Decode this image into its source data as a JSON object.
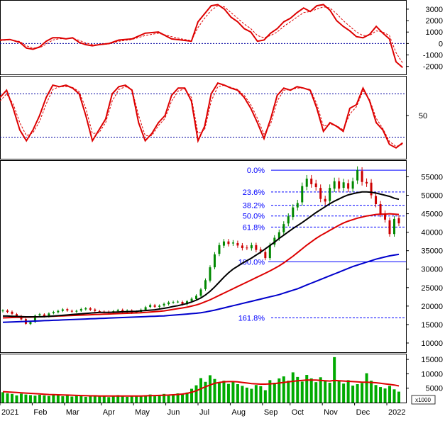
{
  "colors": {
    "background": "#ffffff",
    "frame": "#000000",
    "grid_dotted": "#0000a0",
    "fib_line": "#0000ff",
    "fib_label": "#0000ff",
    "macd": "#dd0000",
    "macd_signal": "#dd0000",
    "stoch": "#dd0000",
    "ma_black": "#000000",
    "ma_red": "#dd0000",
    "ma_blue": "#0000cc",
    "candle_up": "#008800",
    "candle_down": "#cc0000",
    "volume_bar": "#00aa00",
    "volume_ma": "#dd0000"
  },
  "chart_data": [
    {
      "type": "line",
      "panel": "macd",
      "y_ticks": [
        3000,
        2000,
        1000,
        0,
        -1000,
        -2000
      ],
      "y_tick_labels": [
        "3000",
        "2000",
        "1000",
        "0",
        "-1000",
        "-2000"
      ],
      "ylim": [
        -2700,
        3800
      ],
      "reference_lines": [
        0
      ],
      "series": [
        {
          "style": "solid",
          "x": [
            0,
            3,
            6,
            8,
            10,
            12,
            14,
            16,
            18,
            20,
            22,
            24,
            26,
            28,
            30,
            33,
            36,
            40,
            44,
            48,
            52,
            55,
            58,
            60,
            62,
            64,
            66,
            68,
            70,
            72,
            74,
            76,
            78,
            80,
            82,
            84,
            86,
            88,
            90,
            92,
            94,
            96,
            98,
            100,
            102,
            104,
            106,
            108,
            110,
            112,
            114,
            116,
            118,
            120,
            122
          ],
          "values": [
            300,
            350,
            100,
            -400,
            -500,
            -300,
            200,
            500,
            500,
            400,
            500,
            100,
            -100,
            -200,
            -100,
            0,
            300,
            400,
            900,
            1000,
            400,
            300,
            200,
            1900,
            2600,
            3300,
            3400,
            3000,
            2300,
            1900,
            1300,
            1000,
            200,
            300,
            900,
            1300,
            1900,
            2200,
            2700,
            3100,
            2800,
            3300,
            3400,
            2900,
            2000,
            1500,
            1100,
            600,
            500,
            800,
            1500,
            900,
            400,
            -1600,
            -2100
          ]
        },
        {
          "style": "dashed",
          "x": [
            0,
            3,
            6,
            8,
            10,
            12,
            14,
            16,
            18,
            20,
            22,
            24,
            26,
            28,
            30,
            33,
            36,
            40,
            44,
            48,
            52,
            55,
            58,
            60,
            62,
            64,
            66,
            68,
            70,
            72,
            74,
            76,
            78,
            80,
            82,
            84,
            86,
            88,
            90,
            92,
            94,
            96,
            98,
            100,
            102,
            104,
            106,
            108,
            110,
            112,
            114,
            116,
            118,
            120,
            122
          ],
          "values": [
            250,
            320,
            180,
            -200,
            -400,
            -380,
            -50,
            300,
            420,
            420,
            460,
            280,
            50,
            -100,
            -120,
            -40,
            200,
            350,
            700,
            900,
            600,
            400,
            250,
            1400,
            2200,
            2900,
            3300,
            3200,
            2700,
            2200,
            1700,
            1300,
            700,
            500,
            700,
            1000,
            1500,
            1900,
            2300,
            2700,
            2800,
            3000,
            3200,
            3100,
            2600,
            2000,
            1500,
            1000,
            700,
            700,
            1100,
            1000,
            700,
            -800,
            -1700
          ]
        }
      ]
    },
    {
      "type": "line",
      "panel": "stochastic",
      "y_ticks": [
        50
      ],
      "y_tick_labels": [
        "50"
      ],
      "ylim": [
        -10,
        105
      ],
      "reference_lines": [
        80,
        20
      ],
      "series": [
        {
          "style": "solid",
          "x": [
            0,
            2,
            4,
            6,
            8,
            10,
            12,
            14,
            16,
            18,
            20,
            22,
            24,
            26,
            28,
            30,
            32,
            34,
            36,
            38,
            40,
            42,
            44,
            46,
            48,
            50,
            52,
            54,
            56,
            58,
            60,
            62,
            64,
            66,
            68,
            70,
            72,
            74,
            76,
            78,
            80,
            82,
            84,
            86,
            88,
            90,
            92,
            94,
            96,
            98,
            100,
            102,
            104,
            106,
            108,
            110,
            112,
            114,
            116,
            118,
            120,
            122
          ],
          "values": [
            75,
            85,
            60,
            30,
            15,
            30,
            50,
            75,
            92,
            90,
            92,
            88,
            80,
            50,
            15,
            30,
            45,
            80,
            90,
            92,
            85,
            40,
            15,
            25,
            40,
            50,
            78,
            88,
            88,
            70,
            15,
            35,
            80,
            95,
            92,
            88,
            85,
            75,
            60,
            40,
            18,
            45,
            78,
            88,
            85,
            90,
            88,
            85,
            60,
            28,
            40,
            35,
            28,
            60,
            65,
            88,
            70,
            40,
            30,
            10,
            5,
            12
          ]
        },
        {
          "style": "dashed",
          "x": [
            0,
            2,
            4,
            6,
            8,
            10,
            12,
            14,
            16,
            18,
            20,
            22,
            24,
            26,
            28,
            30,
            32,
            34,
            36,
            38,
            40,
            42,
            44,
            46,
            48,
            50,
            52,
            54,
            56,
            58,
            60,
            62,
            64,
            66,
            68,
            70,
            72,
            74,
            76,
            78,
            80,
            82,
            84,
            86,
            88,
            90,
            92,
            94,
            96,
            98,
            100,
            102,
            104,
            106,
            108,
            110,
            112,
            114,
            116,
            118,
            120,
            122
          ],
          "values": [
            70,
            80,
            66,
            40,
            22,
            26,
            42,
            66,
            86,
            90,
            90,
            89,
            83,
            60,
            25,
            26,
            40,
            70,
            86,
            90,
            86,
            50,
            22,
            22,
            36,
            46,
            70,
            84,
            87,
            75,
            25,
            30,
            70,
            90,
            92,
            89,
            86,
            78,
            65,
            46,
            24,
            38,
            70,
            85,
            86,
            88,
            88,
            86,
            66,
            35,
            38,
            36,
            30,
            52,
            62,
            84,
            72,
            46,
            32,
            14,
            7,
            10
          ]
        }
      ]
    },
    {
      "type": "candlestick",
      "panel": "price",
      "x_ticks": [
        "2021",
        "Feb",
        "Mar",
        "Apr",
        "May",
        "Jun",
        "Jul",
        "Aug",
        "Sep",
        "Oct",
        "Nov",
        "Dec",
        "2022"
      ],
      "y_ticks": [
        55000,
        50000,
        45000,
        40000,
        35000,
        30000,
        25000,
        20000,
        15000,
        10000
      ],
      "y_tick_labels": [
        "55000",
        "50000",
        "45000",
        "40000",
        "35000",
        "30000",
        "25000",
        "20000",
        "15000",
        "10000"
      ],
      "ylim": [
        7500,
        59500
      ],
      "fibonacci_levels": [
        {
          "label": "0.0%",
          "value": 56800
        },
        {
          "label": "23.6%",
          "value": 50900
        },
        {
          "label": "38.2%",
          "value": 47300
        },
        {
          "label": "50.0%",
          "value": 44400
        },
        {
          "label": "61.8%",
          "value": 41400
        },
        {
          "label": "100.0%",
          "value": 32000
        },
        {
          "label": "161.8%",
          "value": 16800
        }
      ],
      "close": [
        18800,
        18400,
        17900,
        17300,
        16400,
        15200,
        15700,
        17400,
        17800,
        17200,
        18000,
        18400,
        18700,
        19100,
        18800,
        18500,
        18700,
        19200,
        19400,
        19000,
        18700,
        18500,
        18400,
        18200,
        18600,
        18900,
        18400,
        18800,
        18200,
        18500,
        19000,
        19700,
        20300,
        19800,
        20100,
        20600,
        21000,
        21100,
        21200,
        20500,
        21300,
        22000,
        22800,
        24500,
        27000,
        30500,
        34000,
        36500,
        37500,
        36800,
        37200,
        36400,
        35700,
        35800,
        36500,
        35200,
        34800,
        33000,
        36500,
        38500,
        40000,
        42200,
        44300,
        46700,
        47900,
        52500,
        54500,
        53000,
        52200,
        49000,
        48300,
        52000,
        53800,
        51800,
        53500,
        51800,
        53800,
        56800,
        53600,
        53200,
        50000,
        47600,
        44900,
        43400,
        39500,
        43600,
        42400
      ],
      "series": [
        {
          "name": "",
          "color_key": "ma_black",
          "values": [
            17300,
            17300,
            17250,
            17200,
            17150,
            17100,
            17100,
            17100,
            17100,
            17150,
            17200,
            17300,
            17400,
            17500,
            17600,
            17700,
            17800,
            17900,
            18000,
            18100,
            18200,
            18300,
            18300,
            18300,
            18350,
            18400,
            18450,
            18500,
            18550,
            18600,
            18700,
            18800,
            18900,
            19000,
            19200,
            19400,
            19600,
            19900,
            20100,
            20400,
            20700,
            21100,
            21600,
            22200,
            23000,
            24000,
            25200,
            26500,
            27800,
            29000,
            30000,
            30800,
            31600,
            32300,
            33000,
            33800,
            34600,
            35500,
            36400,
            37300,
            38300,
            39200,
            40100,
            41000,
            41800,
            42600,
            43500,
            44400,
            45300,
            46100,
            46900,
            47700,
            48400,
            49000,
            49600,
            50100,
            50400,
            50700,
            50900,
            50900,
            50800,
            50600,
            50300,
            50000,
            49700,
            49200,
            48900
          ]
        },
        {
          "name": "",
          "color_key": "ma_red",
          "values": [
            16800,
            16850,
            16900,
            16950,
            16950,
            17000,
            17000,
            17050,
            17100,
            17150,
            17200,
            17250,
            17300,
            17350,
            17400,
            17450,
            17500,
            17550,
            17600,
            17650,
            17700,
            17750,
            17800,
            17850,
            17900,
            17950,
            18000,
            18050,
            18100,
            18150,
            18200,
            18300,
            18400,
            18500,
            18600,
            18700,
            18900,
            19100,
            19300,
            19500,
            19700,
            20000,
            20300,
            20700,
            21200,
            21700,
            22300,
            22900,
            23500,
            24100,
            24700,
            25300,
            25900,
            26500,
            27100,
            27700,
            28300,
            28900,
            29500,
            30200,
            30900,
            31700,
            32600,
            33500,
            34500,
            35500,
            36500,
            37400,
            38300,
            39100,
            39800,
            40500,
            41200,
            41900,
            42500,
            43000,
            43400,
            43800,
            44100,
            44400,
            44600,
            44800,
            44900,
            44900,
            45000,
            44900,
            44800
          ]
        },
        {
          "name": "",
          "color_key": "ma_blue",
          "values": [
            15600,
            15650,
            15700,
            15750,
            15800,
            15850,
            15900,
            15950,
            16000,
            16050,
            16100,
            16150,
            16200,
            16250,
            16300,
            16350,
            16400,
            16450,
            16500,
            16550,
            16600,
            16650,
            16700,
            16750,
            16800,
            16850,
            16900,
            16950,
            17000,
            17050,
            17100,
            17150,
            17200,
            17250,
            17300,
            17350,
            17450,
            17550,
            17650,
            17750,
            17850,
            17950,
            18050,
            18200,
            18400,
            18650,
            18900,
            19200,
            19500,
            19800,
            20100,
            20400,
            20700,
            21000,
            21300,
            21600,
            21900,
            22200,
            22500,
            22800,
            23100,
            23500,
            23900,
            24300,
            24700,
            25200,
            25700,
            26200,
            26700,
            27200,
            27700,
            28200,
            28700,
            29200,
            29700,
            30200,
            30700,
            31100,
            31500,
            31900,
            32300,
            32700,
            33000,
            33300,
            33600,
            33800,
            34000
          ]
        }
      ]
    },
    {
      "type": "bar",
      "panel": "volume",
      "y_ticks": [
        15000,
        10000,
        5000
      ],
      "y_tick_labels": [
        "15000",
        "10000",
        "5000"
      ],
      "unit_label": "x1000",
      "ylim": [
        0,
        17000
      ],
      "values": [
        3600,
        3200,
        3000,
        2500,
        3100,
        2800,
        2600,
        2400,
        2700,
        2500,
        2300,
        2600,
        2800,
        2200,
        2500,
        2100,
        2400,
        2300,
        2000,
        2200,
        2500,
        2100,
        2300,
        1900,
        2100,
        2600,
        2200,
        2000,
        2400,
        2100,
        2300,
        2500,
        2800,
        2200,
        2600,
        3000,
        2400,
        2700,
        3200,
        2900,
        3500,
        4800,
        6000,
        8500,
        7200,
        9500,
        8200,
        6800,
        7600,
        6500,
        7200,
        6400,
        5800,
        5200,
        4800,
        6100,
        5700,
        4300,
        7800,
        6900,
        8400,
        9100,
        7600,
        10500,
        8900,
        7300,
        9600,
        8400,
        7100,
        8800,
        7500,
        6900,
        15800,
        7400,
        6600,
        7800,
        5900,
        6400,
        6800,
        10200,
        7600,
        6100,
        5400,
        4900,
        5800,
        4600,
        3800
      ],
      "ma_values": [
        3800,
        3700,
        3600,
        3500,
        3400,
        3300,
        3200,
        3100,
        3000,
        2900,
        2800,
        2750,
        2700,
        2650,
        2600,
        2550,
        2500,
        2450,
        2400,
        2350,
        2350,
        2300,
        2300,
        2300,
        2300,
        2300,
        2300,
        2300,
        2300,
        2300,
        2300,
        2350,
        2400,
        2450,
        2500,
        2550,
        2600,
        2700,
        2800,
        2950,
        3200,
        3600,
        4100,
        4800,
        5500,
        6100,
        6700,
        7000,
        7200,
        7300,
        7300,
        7200,
        7000,
        6800,
        6600,
        6500,
        6400,
        6400,
        6500,
        6600,
        6800,
        7000,
        7200,
        7400,
        7600,
        7700,
        7800,
        7800,
        7800,
        7700,
        7600,
        7500,
        7700,
        7600,
        7500,
        7400,
        7300,
        7200,
        7100,
        7100,
        7000,
        6900,
        6700,
        6500,
        6300,
        6100,
        5800
      ]
    }
  ]
}
